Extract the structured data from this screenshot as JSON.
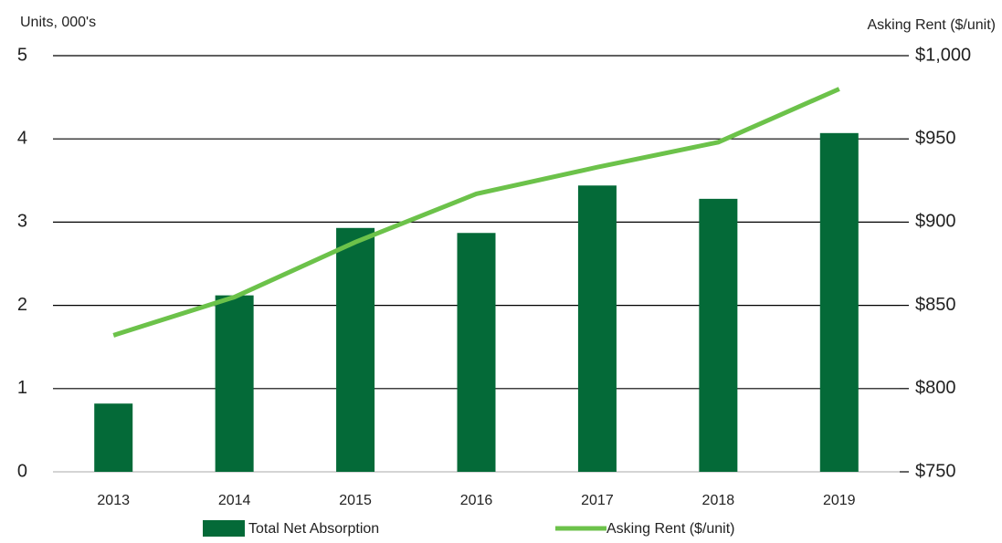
{
  "chart_data": {
    "type": "bar",
    "y_label": "Units, 000's",
    "y2_label": "Asking Rent ($/unit)",
    "categories": [
      "2013",
      "2014",
      "2015",
      "2016",
      "2017",
      "2018",
      "2019"
    ],
    "series": [
      {
        "name": "Total Net Absorption",
        "type": "bar",
        "color": "#046a38",
        "values": [
          0.82,
          2.12,
          2.93,
          2.87,
          3.44,
          3.28,
          4.07
        ]
      },
      {
        "name": "Asking Rent ($/unit)",
        "type": "line",
        "axis": "y2",
        "color": "#6cc24a",
        "values": [
          832,
          855,
          888,
          917,
          933,
          948,
          980
        ]
      }
    ],
    "ylim": [
      0,
      5
    ],
    "yticks": [
      0,
      1,
      2,
      3,
      4,
      5
    ],
    "y2lim": [
      750,
      1000
    ],
    "y2ticks": [
      {
        "value": 750,
        "label": "$750"
      },
      {
        "value": 800,
        "label": "$800"
      },
      {
        "value": 850,
        "label": "$850"
      },
      {
        "value": 900,
        "label": "$900"
      },
      {
        "value": 950,
        "label": "$950"
      },
      {
        "value": 1000,
        "label": "$1,000"
      }
    ],
    "grid": true,
    "legend": "bottom"
  }
}
